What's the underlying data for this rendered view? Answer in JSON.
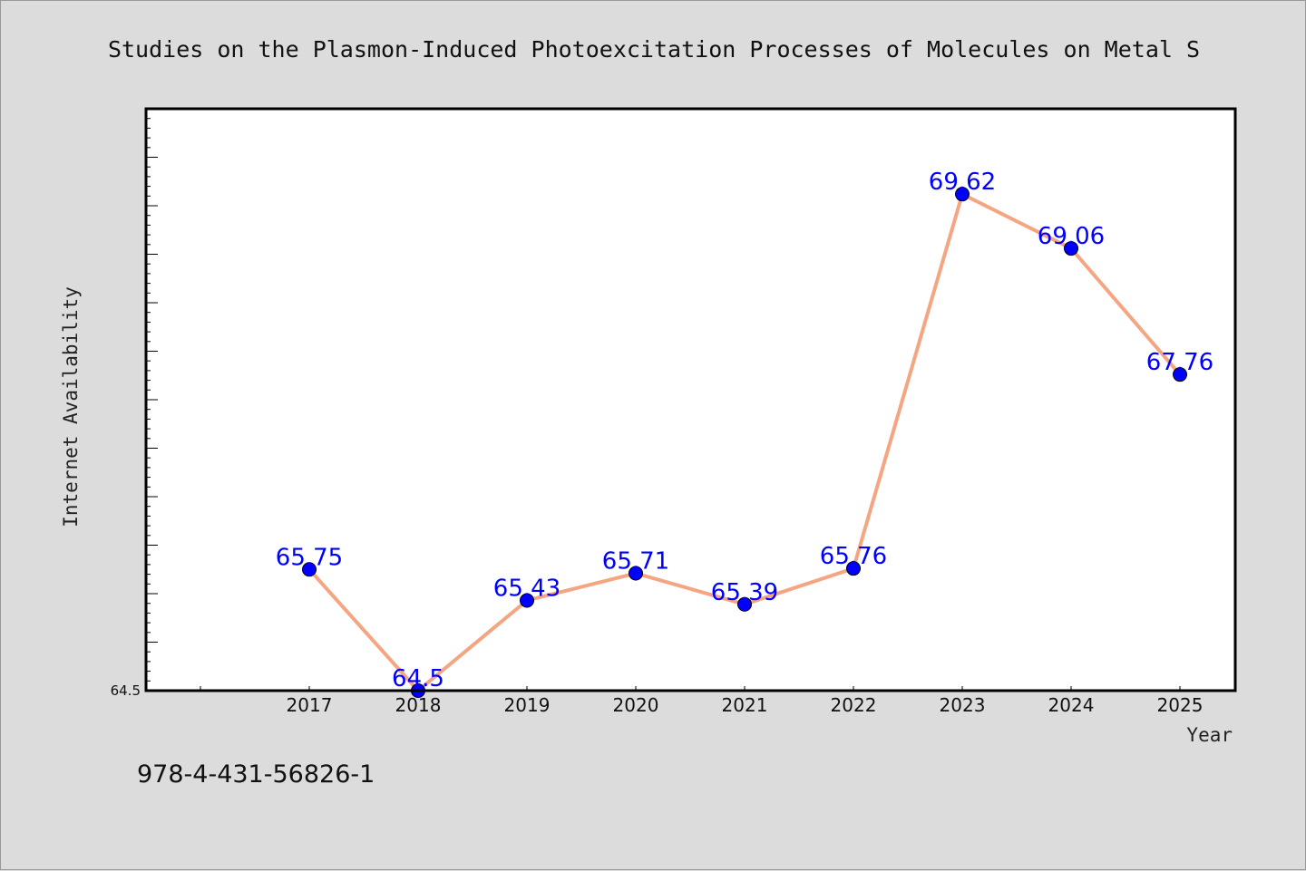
{
  "chart_data": {
    "type": "line",
    "title": "Studies on the Plasmon-Induced Photoexcitation Processes of Molecules on Metal S",
    "xlabel": "Year",
    "ylabel": "Internet Availability",
    "categories": [
      "2017",
      "2018",
      "2019",
      "2020",
      "2021",
      "2022",
      "2023",
      "2024",
      "2025"
    ],
    "values": [
      65.75,
      64.5,
      65.43,
      65.71,
      65.39,
      65.76,
      69.62,
      69.06,
      67.76
    ],
    "data_labels": [
      "65.75",
      "64.5",
      "65.43",
      "65.71",
      "65.39",
      "65.76",
      "69.62",
      "69.06",
      "67.76"
    ],
    "ytick_labels": [
      "64.5"
    ],
    "ylim": [
      64.5,
      70.5
    ],
    "grid": false,
    "line_color": "#f4a582",
    "marker_color": "#0000ff",
    "label_color": "#0000ff"
  },
  "footer": {
    "isbn": "978-4-431-56826-1"
  }
}
